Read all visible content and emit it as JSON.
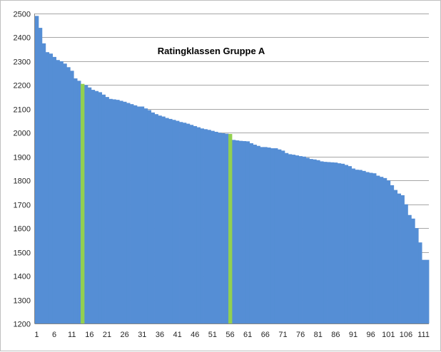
{
  "chart_data": {
    "type": "bar",
    "title": "Ratingklassen Gruppe A",
    "xlabel": "",
    "ylabel": "",
    "ylim": [
      1200,
      2500
    ],
    "yticks": [
      1200,
      1300,
      1400,
      1500,
      1600,
      1700,
      1800,
      1900,
      2000,
      2100,
      2200,
      2300,
      2400,
      2500
    ],
    "xtick_labels": [
      "1",
      "6",
      "11",
      "16",
      "21",
      "26",
      "31",
      "36",
      "41",
      "46",
      "51",
      "56",
      "61",
      "66",
      "71",
      "76",
      "81",
      "86",
      "91",
      "96",
      "101",
      "106",
      "111"
    ],
    "grid": true,
    "legend": "none",
    "colors": {
      "bar": "#558ed5",
      "highlight": "#92d050",
      "grid": "#a6a6a6"
    },
    "highlighted_categories": [
      14,
      56
    ],
    "categories": [
      1,
      2,
      3,
      4,
      5,
      6,
      7,
      8,
      9,
      10,
      11,
      12,
      13,
      14,
      15,
      16,
      17,
      18,
      19,
      20,
      21,
      22,
      23,
      24,
      25,
      26,
      27,
      28,
      29,
      30,
      31,
      32,
      33,
      34,
      35,
      36,
      37,
      38,
      39,
      40,
      41,
      42,
      43,
      44,
      45,
      46,
      47,
      48,
      49,
      50,
      51,
      52,
      53,
      54,
      55,
      56,
      57,
      58,
      59,
      60,
      61,
      62,
      63,
      64,
      65,
      66,
      67,
      68,
      69,
      70,
      71,
      72,
      73,
      74,
      75,
      76,
      77,
      78,
      79,
      80,
      81,
      82,
      83,
      84,
      85,
      86,
      87,
      88,
      89,
      90,
      91,
      92,
      93,
      94,
      95,
      96,
      97,
      98,
      99,
      100,
      101,
      102,
      103,
      104,
      105,
      106,
      107,
      108,
      109,
      110,
      111,
      112
    ],
    "values": [
      2490,
      2440,
      2375,
      2338,
      2332,
      2318,
      2305,
      2300,
      2290,
      2275,
      2260,
      2228,
      2218,
      2205,
      2200,
      2190,
      2180,
      2175,
      2170,
      2160,
      2150,
      2142,
      2140,
      2138,
      2134,
      2130,
      2125,
      2120,
      2115,
      2110,
      2110,
      2102,
      2095,
      2085,
      2078,
      2072,
      2068,
      2062,
      2058,
      2054,
      2050,
      2045,
      2042,
      2038,
      2033,
      2028,
      2023,
      2018,
      2015,
      2012,
      2008,
      2004,
      2000,
      1998,
      1996,
      1995,
      1970,
      1968,
      1966,
      1965,
      1964,
      1956,
      1950,
      1945,
      1940,
      1940,
      1938,
      1935,
      1935,
      1930,
      1925,
      1915,
      1910,
      1908,
      1905,
      1902,
      1900,
      1895,
      1890,
      1888,
      1885,
      1880,
      1878,
      1877,
      1876,
      1875,
      1872,
      1870,
      1865,
      1860,
      1850,
      1845,
      1844,
      1840,
      1835,
      1832,
      1830,
      1820,
      1815,
      1810,
      1800,
      1780,
      1760,
      1745,
      1738,
      1700,
      1655,
      1640,
      1600,
      1540,
      1467,
      1467
    ]
  }
}
